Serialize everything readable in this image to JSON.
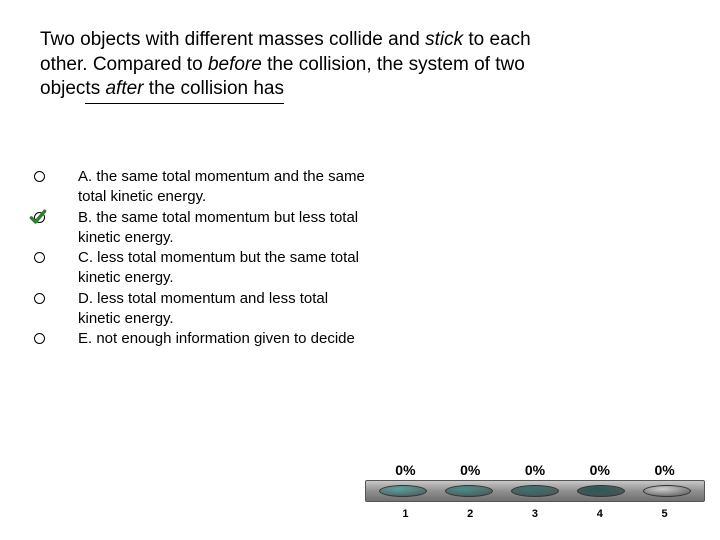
{
  "title": {
    "line1_prefix": "Two objects with different masses collide and ",
    "line1_italic": "stick",
    "line1_suffix": " to each",
    "line2_prefix": "other. Compared to ",
    "line2_italic": "before",
    "line2_suffix": " the collision, the system of two",
    "line3_prefix": "objec",
    "line3_underline_pre": "ts ",
    "line3_underline_italic": "after",
    "line3_underline_post": " the collision has"
  },
  "options": [
    {
      "checked": false,
      "text": "A. the same total momentum and the same total kinetic energy."
    },
    {
      "checked": true,
      "text": "B. the same total momentum but less total kinetic energy."
    },
    {
      "checked": false,
      "text": "C. less total momentum but the same total kinetic energy."
    },
    {
      "checked": false,
      "text": "D. less total momentum and less total kinetic energy."
    },
    {
      "checked": false,
      "text": "E. not enough information given to decide"
    }
  ],
  "chart": {
    "top_labels": [
      "0%",
      "0%",
      "0%",
      "0%",
      "0%"
    ],
    "bottom_labels": [
      "1",
      "2",
      "3",
      "4",
      "5"
    ],
    "oval_colors": [
      "#5aa0a0",
      "#4a8a8a",
      "#3a7070",
      "#2a5858",
      "#cccccc"
    ],
    "checkmark_color": "#2e7d32"
  }
}
